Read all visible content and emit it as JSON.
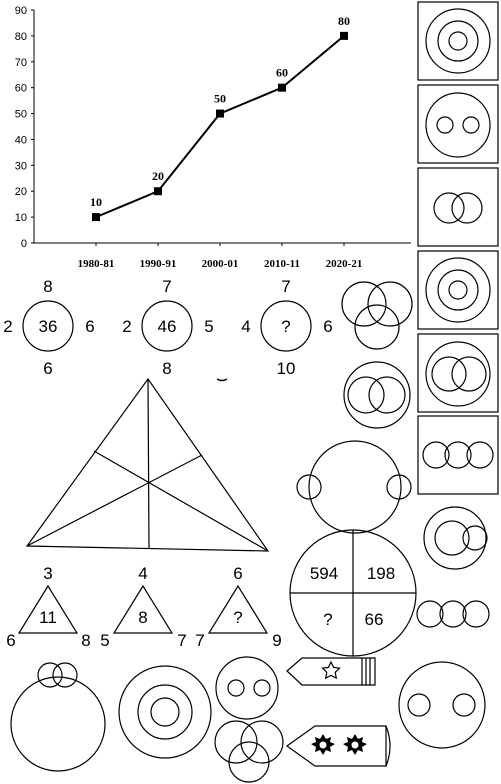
{
  "chart_data": {
    "type": "line",
    "categories": [
      "1980-81",
      "1990-91",
      "2000-01",
      "2010-11",
      "2020-21"
    ],
    "values": [
      10,
      20,
      50,
      60,
      80
    ],
    "data_labels": [
      "10",
      "20",
      "50",
      "60",
      "80"
    ],
    "y_ticks": [
      "0",
      "10",
      "20",
      "30",
      "40",
      "50",
      "60",
      "70",
      "80",
      "90"
    ],
    "ylim": [
      0,
      90
    ],
    "grid": false,
    "marker": "square",
    "color": "#000000"
  },
  "circle_puzzle": [
    {
      "top": "8",
      "left": "2",
      "center": "36",
      "right": "6",
      "bottom": "6"
    },
    {
      "top": "7",
      "left": "2",
      "center": "46",
      "right": "5",
      "bottom": "8"
    },
    {
      "top": "7",
      "left": "4",
      "center": "?",
      "right": "6",
      "bottom": "10"
    }
  ],
  "triangle_puzzle": [
    {
      "top": "3",
      "left": "6",
      "center": "11",
      "right": "8"
    },
    {
      "top": "4",
      "left": "5",
      "center": "8",
      "right": "7"
    },
    {
      "top": "6",
      "left": "7",
      "center": "?",
      "right": "9"
    }
  ],
  "quadrant_circle": {
    "top_left": "594",
    "top_right": "198",
    "bottom_left": "?",
    "bottom_right": "66"
  },
  "icons": {
    "star_pencil": "star-icon",
    "gear_pencil": "sun-gear-icon"
  }
}
